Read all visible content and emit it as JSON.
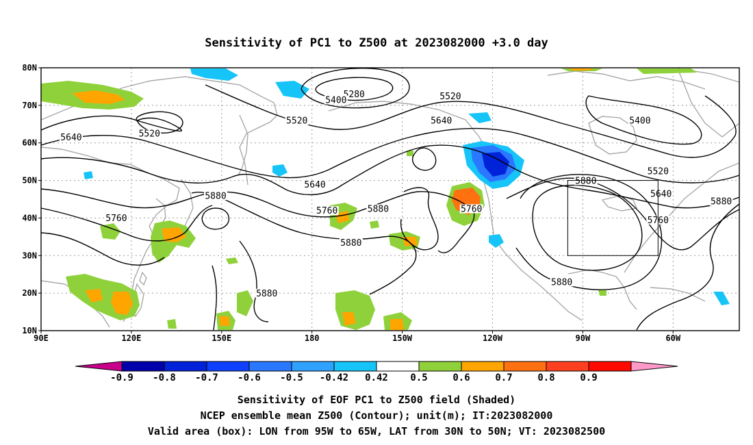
{
  "title": "Sensitivity of PC1 to Z500 at 2023082000 +3.0 day",
  "map": {
    "lon_ticks": [
      {
        "lon": 90,
        "label": "90E"
      },
      {
        "lon": 120,
        "label": "120E"
      },
      {
        "lon": 150,
        "label": "150E"
      },
      {
        "lon": 180,
        "label": "180"
      },
      {
        "lon": 210,
        "label": "150W"
      },
      {
        "lon": 240,
        "label": "120W"
      },
      {
        "lon": 270,
        "label": "90W"
      },
      {
        "lon": 300,
        "label": "60W"
      }
    ],
    "lat_ticks": [
      {
        "lat": 80,
        "label": "80N"
      },
      {
        "lat": 70,
        "label": "70N"
      },
      {
        "lat": 60,
        "label": "60N"
      },
      {
        "lat": 50,
        "label": "50N"
      },
      {
        "lat": 40,
        "label": "40N"
      },
      {
        "lat": 30,
        "label": "30N"
      },
      {
        "lat": 20,
        "label": "20N"
      },
      {
        "lat": 10,
        "label": "10N"
      }
    ],
    "lon_range": [
      90,
      322
    ],
    "lat_range": [
      10,
      80
    ],
    "valid_box": {
      "lon_min": 265,
      "lon_max": 295,
      "lat_min": 30,
      "lat_max": 50
    },
    "contour_labels": [
      {
        "text": "5280",
        "lon": 194,
        "lat": 72.5
      },
      {
        "text": "5400",
        "lon": 188,
        "lat": 71
      },
      {
        "text": "5520",
        "lon": 226,
        "lat": 72
      },
      {
        "text": "5520",
        "lon": 175,
        "lat": 65.5
      },
      {
        "text": "5520",
        "lon": 126,
        "lat": 62
      },
      {
        "text": "5640",
        "lon": 100,
        "lat": 61
      },
      {
        "text": "5640",
        "lon": 223,
        "lat": 65.5
      },
      {
        "text": "5400",
        "lon": 289,
        "lat": 65.5
      },
      {
        "text": "5520",
        "lon": 295,
        "lat": 52
      },
      {
        "text": "5640",
        "lon": 296,
        "lat": 46
      },
      {
        "text": "5640",
        "lon": 181,
        "lat": 48.5
      },
      {
        "text": "5880",
        "lon": 148,
        "lat": 45.5
      },
      {
        "text": "5880",
        "lon": 271,
        "lat": 49.5
      },
      {
        "text": "5880",
        "lon": 316,
        "lat": 44
      },
      {
        "text": "5760",
        "lon": 185,
        "lat": 41.5
      },
      {
        "text": "5760",
        "lon": 233,
        "lat": 42
      },
      {
        "text": "5760",
        "lon": 295,
        "lat": 39
      },
      {
        "text": "5760",
        "lon": 115,
        "lat": 39.5
      },
      {
        "text": "5880",
        "lon": 202,
        "lat": 42
      },
      {
        "text": "5880",
        "lon": 193,
        "lat": 33
      },
      {
        "text": "5880",
        "lon": 263,
        "lat": 22.5
      },
      {
        "text": "5880",
        "lon": 165,
        "lat": 19.5
      }
    ]
  },
  "colorbar": {
    "colors": [
      "#c8008c",
      "#0000aa",
      "#0022d8",
      "#1040ff",
      "#2a78ff",
      "#2fa2ff",
      "#16c4f8",
      "#ffffff",
      "#8fd13a",
      "#ffa500",
      "#ff7010",
      "#ff4020",
      "#ff0a00",
      "#ff9ac8"
    ],
    "labels": [
      "-0.9",
      "-0.8",
      "-0.7",
      "-0.6",
      "-0.5",
      "-0.42",
      "0.42",
      "0.5",
      "0.6",
      "0.7",
      "0.8",
      "0.9"
    ]
  },
  "footer": {
    "line1": "Sensitivity of EOF PC1 to Z500 field (Shaded)",
    "line2": "NCEP ensemble mean Z500 (Contour); unit(m); IT:2023082000",
    "line3": "Valid area (box): LON from 95W to 65W, LAT from 30N to 50N; VT: 2023082500"
  }
}
